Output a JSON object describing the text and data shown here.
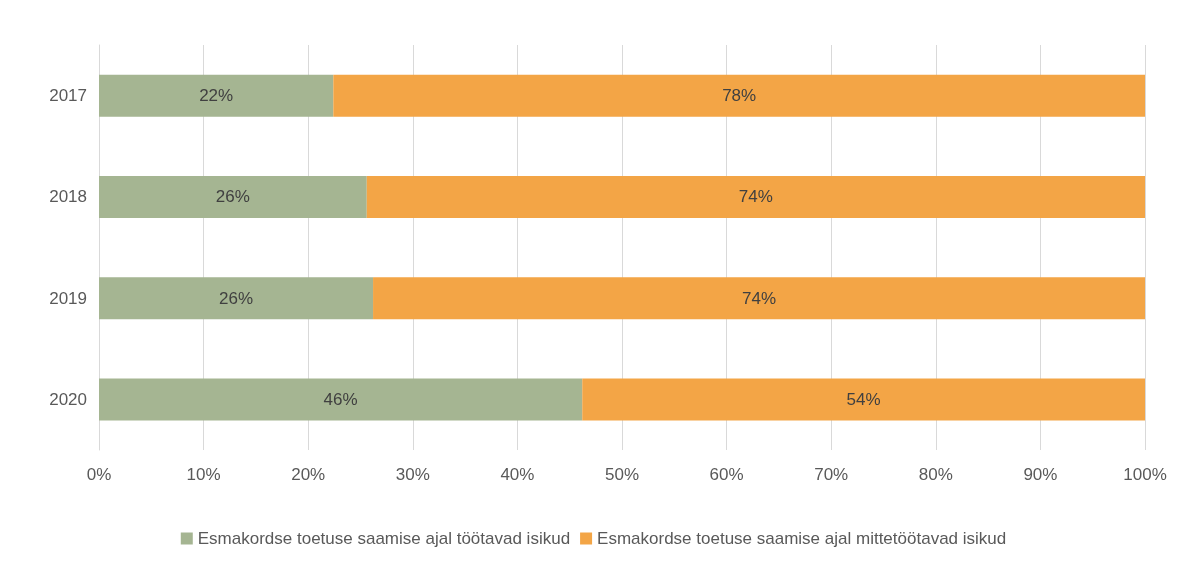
{
  "chart_data": {
    "type": "bar",
    "orientation": "horizontal",
    "stacked": true,
    "categories": [
      "2017",
      "2018",
      "2019",
      "2020"
    ],
    "series": [
      {
        "name": "Esmakordse toetuse saamise ajal töötavad isikud",
        "color": "#a5b592",
        "values": [
          22.4,
          25.6,
          26.2,
          46.2
        ],
        "value_labels": [
          "22%",
          "26%",
          "26%",
          "46%"
        ]
      },
      {
        "name": "Esmakordse toetuse saamise ajal mittetöötavad isikud",
        "color": "#f3a546",
        "values": [
          77.6,
          74.4,
          73.8,
          53.8
        ],
        "value_labels": [
          "78%",
          "74%",
          "74%",
          "54%"
        ]
      }
    ],
    "xlim": [
      0,
      100
    ],
    "xticks": [
      {
        "value": 0,
        "label": "0%"
      },
      {
        "value": 10,
        "label": "10%"
      },
      {
        "value": 20,
        "label": "20%"
      },
      {
        "value": 30,
        "label": "30%"
      },
      {
        "value": 40,
        "label": "40%"
      },
      {
        "value": 50,
        "label": "50%"
      },
      {
        "value": 60,
        "label": "60%"
      },
      {
        "value": 70,
        "label": "70%"
      },
      {
        "value": 80,
        "label": "80%"
      },
      {
        "value": 90,
        "label": "90%"
      },
      {
        "value": 100,
        "label": "100%"
      }
    ],
    "grid": "x",
    "legend": "bottom"
  }
}
